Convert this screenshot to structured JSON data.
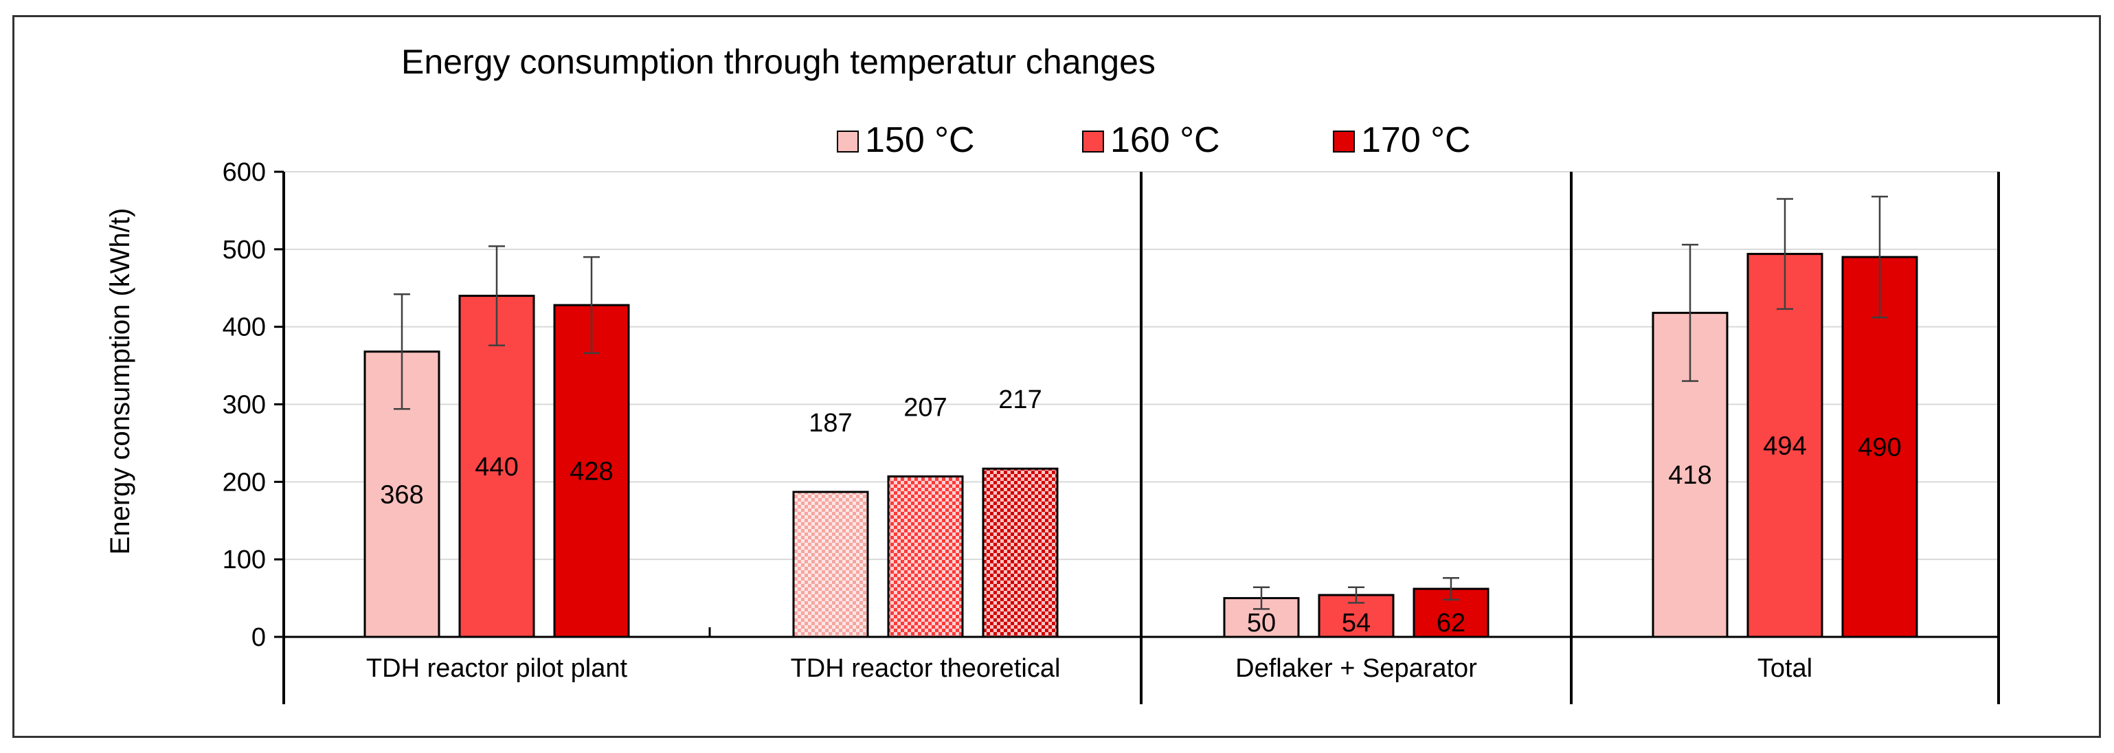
{
  "chart_data": {
    "type": "bar",
    "title": "Energy consumption through temperatur changes",
    "ylabel": "Energy consumption (kWh/t)",
    "xlabel": "",
    "ylim": [
      0,
      600
    ],
    "yticks": [
      0,
      100,
      200,
      300,
      400,
      500,
      600
    ],
    "grid": true,
    "legend_position": "top",
    "categories": [
      "TDH reactor pilot plant",
      "TDH reactor theoretical",
      "Deflaker + Separator",
      "Total"
    ],
    "series": [
      {
        "name": "150 °C",
        "color": "#f9c0bd",
        "values": [
          368,
          187,
          50,
          418
        ],
        "error": [
          74,
          null,
          14,
          88
        ],
        "labels": [
          "368",
          "187",
          "50",
          "418"
        ]
      },
      {
        "name": "160 °C",
        "color": "#fc4545",
        "values": [
          440,
          207,
          54,
          494
        ],
        "error": [
          64,
          null,
          10,
          71
        ],
        "labels": [
          "440",
          "207",
          "54",
          "494"
        ]
      },
      {
        "name": "170 °C",
        "color": "#e00000",
        "values": [
          428,
          217,
          62,
          490
        ],
        "error": [
          62,
          null,
          14,
          78
        ],
        "labels": [
          "428",
          "217",
          "62",
          "490"
        ]
      }
    ],
    "patterned_category": "TDH reactor theoretical",
    "label_above_bars_category": "TDH reactor theoretical"
  }
}
